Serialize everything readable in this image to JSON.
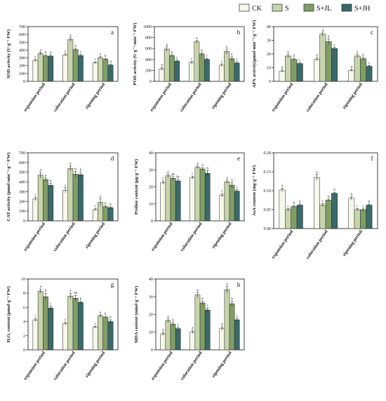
{
  "legend": [
    {
      "label": "CK",
      "color": "#f6f8ea"
    },
    {
      "label": "S",
      "color": "#c7d4ac"
    },
    {
      "label": "S+JL",
      "color": "#819e66"
    },
    {
      "label": "S+JH",
      "color": "#3a6a6a"
    }
  ],
  "chart_data": [
    {
      "type": "bar",
      "letter": "a",
      "ylabel": "SOD activity (U·g⁻¹ FW)",
      "categories": [
        "expansion period",
        "coloration period",
        "ripening period"
      ],
      "ylim": [
        0,
        700
      ],
      "yticks": [
        0,
        100,
        200,
        300,
        400,
        500,
        600,
        700
      ],
      "series": [
        {
          "name": "CK",
          "values": [
            268,
            338,
            238
          ],
          "errors": [
            15,
            15,
            12
          ],
          "labels": [
            "c",
            "c",
            "c"
          ]
        },
        {
          "name": "S",
          "values": [
            355,
            535,
            303
          ],
          "errors": [
            18,
            22,
            14
          ],
          "labels": [
            "a",
            "a",
            "a"
          ]
        },
        {
          "name": "S+JL",
          "values": [
            325,
            405,
            283
          ],
          "errors": [
            15,
            18,
            12
          ],
          "labels": [
            "b",
            "b",
            "b"
          ]
        },
        {
          "name": "S+JH",
          "values": [
            323,
            330,
            208
          ],
          "errors": [
            14,
            14,
            10
          ],
          "labels": [
            "b",
            "c",
            "d"
          ]
        }
      ]
    },
    {
      "type": "bar",
      "letter": "b",
      "ylabel": "POD activity (U·g⁻¹·min⁻¹ FW)",
      "categories": [
        "expansion period",
        "coloration period",
        "ripening period"
      ],
      "ylim": [
        0,
        1000
      ],
      "yticks": [
        0,
        200,
        400,
        600,
        800,
        1000
      ],
      "series": [
        {
          "name": "CK",
          "values": [
            225,
            345,
            295
          ],
          "errors": [
            25,
            25,
            25
          ],
          "labels": [
            "d",
            "c",
            "c"
          ]
        },
        {
          "name": "S",
          "values": [
            590,
            725,
            545
          ],
          "errors": [
            40,
            25,
            45
          ],
          "labels": [
            "a",
            "a",
            "a"
          ]
        },
        {
          "name": "S+JL",
          "values": [
            470,
            500,
            415
          ],
          "errors": [
            20,
            20,
            35
          ],
          "labels": [
            "b",
            "b",
            "b"
          ]
        },
        {
          "name": "S+JH",
          "values": [
            370,
            400,
            335
          ],
          "errors": [
            20,
            20,
            25
          ],
          "labels": [
            "c",
            "c",
            "c"
          ]
        }
      ]
    },
    {
      "type": "bar",
      "letter": "c",
      "ylabel": "APX activity(μmol·min⁻¹·g⁻¹ FW)",
      "categories": [
        "expansion period",
        "coloration period",
        "ripening period"
      ],
      "ylim": [
        0,
        40
      ],
      "yticks": [
        0,
        10,
        20,
        30,
        40
      ],
      "series": [
        {
          "name": "CK",
          "values": [
            7.5,
            16.0,
            8.0
          ],
          "errors": [
            0.8,
            1.2,
            0.8
          ],
          "labels": [
            "d",
            "d",
            "d"
          ]
        },
        {
          "name": "S",
          "values": [
            18.5,
            34.5,
            18.5
          ],
          "errors": [
            1.2,
            1.5,
            1.2
          ],
          "labels": [
            "a",
            "a",
            "a"
          ]
        },
        {
          "name": "S+JL",
          "values": [
            16.0,
            29.0,
            16.5
          ],
          "errors": [
            0.8,
            2.0,
            1.0
          ],
          "labels": [
            "b",
            "b",
            "b"
          ]
        },
        {
          "name": "S+JH",
          "values": [
            13.0,
            24.0,
            11.0
          ],
          "errors": [
            0.8,
            1.0,
            0.6
          ],
          "labels": [
            "c",
            "c",
            "c"
          ]
        }
      ]
    },
    {
      "type": "bar",
      "letter": "d",
      "ylabel": "CAT activity (μmol·min⁻¹·g⁻¹ FW)",
      "categories": [
        "expansion period",
        "coloration period",
        "ripening period"
      ],
      "ylim": [
        0,
        700
      ],
      "yticks": [
        0,
        100,
        200,
        300,
        400,
        500,
        600,
        700
      ],
      "series": [
        {
          "name": "CK",
          "values": [
            225,
            315,
            115
          ],
          "errors": [
            20,
            25,
            10
          ],
          "labels": [
            "c",
            "c",
            "c"
          ]
        },
        {
          "name": "S",
          "values": [
            470,
            540,
            190
          ],
          "errors": [
            30,
            25,
            35
          ],
          "labels": [
            "a",
            "a",
            "a"
          ]
        },
        {
          "name": "S+JL",
          "values": [
            425,
            480,
            145
          ],
          "errors": [
            20,
            30,
            10
          ],
          "labels": [
            "a",
            "b",
            "b"
          ]
        },
        {
          "name": "S+JH",
          "values": [
            365,
            475,
            135
          ],
          "errors": [
            20,
            25,
            10
          ],
          "labels": [
            "b",
            "b",
            "b"
          ]
        }
      ]
    },
    {
      "type": "bar",
      "letter": "e",
      "ylabel": "Proline content (μg·g⁻¹ FW)",
      "categories": [
        "expansion period",
        "coloration period",
        "ripening period"
      ],
      "ylim": [
        0,
        40
      ],
      "yticks": [
        0,
        10,
        20,
        30,
        40
      ],
      "series": [
        {
          "name": "CK",
          "values": [
            22.5,
            25.5,
            15.0
          ],
          "errors": [
            1.0,
            0.8,
            1.0
          ],
          "labels": [
            "c",
            "c",
            "c"
          ]
        },
        {
          "name": "S",
          "values": [
            26.5,
            31.5,
            23.0
          ],
          "errors": [
            1.2,
            0.8,
            1.0
          ],
          "labels": [
            "a",
            "a",
            "a"
          ]
        },
        {
          "name": "S+JL",
          "values": [
            25.0,
            30.5,
            21.0
          ],
          "errors": [
            1.0,
            0.8,
            1.5
          ],
          "labels": [
            "ab",
            "b",
            "b"
          ]
        },
        {
          "name": "S+JH",
          "values": [
            23.5,
            28.0,
            17.5
          ],
          "errors": [
            1.0,
            1.5,
            0.8
          ],
          "labels": [
            "bc",
            "b",
            "c"
          ]
        }
      ]
    },
    {
      "type": "bar",
      "letter": "f",
      "ylabel": "AsA content (mg·g⁻¹ FW)",
      "categories": [
        "expansion period",
        "coloration period",
        "ripening period"
      ],
      "ylim": [
        0,
        0.2
      ],
      "yticks": [
        0.0,
        0.05,
        0.1,
        0.15,
        0.2
      ],
      "series": [
        {
          "name": "CK",
          "values": [
            0.102,
            0.135,
            0.08
          ],
          "errors": [
            0.005,
            0.008,
            0.005
          ],
          "labels": [
            "a",
            "a",
            "a"
          ]
        },
        {
          "name": "S",
          "values": [
            0.05,
            0.062,
            0.05
          ],
          "errors": [
            0.003,
            0.004,
            0.003
          ],
          "labels": [
            "c",
            "c",
            "c"
          ]
        },
        {
          "name": "S+JL",
          "values": [
            0.058,
            0.075,
            0.05
          ],
          "errors": [
            0.003,
            0.003,
            0.004
          ],
          "labels": [
            "b",
            "b",
            "c"
          ]
        },
        {
          "name": "S+JH",
          "values": [
            0.062,
            0.093,
            0.062
          ],
          "errors": [
            0.003,
            0.003,
            0.003
          ],
          "labels": [
            "b",
            "b",
            "b"
          ]
        }
      ]
    },
    {
      "type": "bar",
      "letter": "g",
      "ylabel": "H₂O₂ content (μmol·g⁻¹ FW)",
      "categories": [
        "expansion period",
        "coloration period",
        "ripening period"
      ],
      "ylim": [
        0,
        10
      ],
      "yticks": [
        0,
        2,
        4,
        6,
        8,
        10
      ],
      "series": [
        {
          "name": "CK",
          "values": [
            4.2,
            3.7,
            3.2
          ],
          "errors": [
            0.2,
            0.2,
            0.15
          ],
          "labels": [
            "c",
            "c",
            "c"
          ]
        },
        {
          "name": "S",
          "values": [
            8.3,
            7.6,
            4.8
          ],
          "errors": [
            0.3,
            0.4,
            0.15
          ],
          "labels": [
            "a",
            "a",
            "a"
          ]
        },
        {
          "name": "S+JL",
          "values": [
            7.5,
            7.3,
            4.6
          ],
          "errors": [
            0.5,
            0.4,
            0.15
          ],
          "labels": [
            "b",
            "ab",
            "b"
          ]
        },
        {
          "name": "S+JH",
          "values": [
            5.9,
            6.7,
            4.0
          ],
          "errors": [
            0.3,
            0.2,
            0.25
          ],
          "labels": [
            "c",
            "b",
            "b"
          ]
        }
      ]
    },
    {
      "type": "bar",
      "letter": "h",
      "ylabel": "MDA content (nmol·g⁻¹ FW)",
      "categories": [
        "expansion period",
        "coloration period",
        "ripening period"
      ],
      "ylim": [
        0,
        40
      ],
      "yticks": [
        0,
        10,
        20,
        30,
        40
      ],
      "series": [
        {
          "name": "CK",
          "values": [
            9.0,
            10.0,
            12.0
          ],
          "errors": [
            0.8,
            0.8,
            1.0
          ],
          "labels": [
            "d",
            "d",
            "d"
          ]
        },
        {
          "name": "S",
          "values": [
            16.5,
            31.0,
            34.0
          ],
          "errors": [
            1.0,
            1.5,
            2.0
          ],
          "labels": [
            "a",
            "a",
            "a"
          ]
        },
        {
          "name": "S+JL",
          "values": [
            14.5,
            26.5,
            26.0
          ],
          "errors": [
            1.0,
            1.0,
            1.5
          ],
          "labels": [
            "b",
            "b",
            "b"
          ]
        },
        {
          "name": "S+JH",
          "values": [
            12.0,
            22.5,
            17.0
          ],
          "errors": [
            0.8,
            1.2,
            1.0
          ],
          "labels": [
            "c",
            "c",
            "c"
          ]
        }
      ]
    }
  ]
}
